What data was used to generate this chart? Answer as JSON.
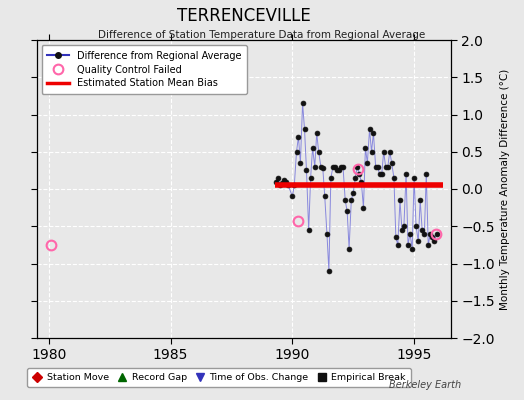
{
  "title": "TERRENCEVILLE",
  "subtitle": "Difference of Station Temperature Data from Regional Average",
  "ylabel": "Monthly Temperature Anomaly Difference (°C)",
  "xlim": [
    1979.5,
    1996.5
  ],
  "ylim": [
    -2,
    2
  ],
  "yticks": [
    -2,
    -1.5,
    -1,
    -0.5,
    0,
    0.5,
    1,
    1.5,
    2
  ],
  "xticks": [
    1980,
    1985,
    1990,
    1995
  ],
  "bias_level": 0.05,
  "bias_start": 1989.3,
  "bias_end": 1996.2,
  "qc_failed": [
    [
      1980.1,
      -0.75
    ],
    [
      1990.25,
      -0.43
    ],
    [
      1992.7,
      0.27
    ],
    [
      1995.9,
      -0.6
    ]
  ],
  "data_x": [
    1989.33,
    1989.42,
    1989.5,
    1989.58,
    1989.67,
    1989.75,
    1989.83,
    1990.0,
    1990.08,
    1990.17,
    1990.25,
    1990.33,
    1990.42,
    1990.5,
    1990.58,
    1990.67,
    1990.75,
    1990.83,
    1990.92,
    1991.0,
    1991.08,
    1991.17,
    1991.25,
    1991.33,
    1991.42,
    1991.5,
    1991.58,
    1991.67,
    1991.75,
    1991.83,
    1991.92,
    1992.0,
    1992.08,
    1992.17,
    1992.25,
    1992.33,
    1992.42,
    1992.5,
    1992.58,
    1992.67,
    1992.75,
    1992.83,
    1992.92,
    1993.0,
    1993.08,
    1993.17,
    1993.25,
    1993.33,
    1993.42,
    1993.5,
    1993.58,
    1993.67,
    1993.75,
    1993.83,
    1993.92,
    1994.0,
    1994.08,
    1994.17,
    1994.25,
    1994.33,
    1994.42,
    1994.5,
    1994.58,
    1994.67,
    1994.75,
    1994.83,
    1994.92,
    1995.0,
    1995.08,
    1995.17,
    1995.25,
    1995.33,
    1995.42,
    1995.5,
    1995.58,
    1995.67,
    1995.75,
    1995.83,
    1995.92
  ],
  "data_y": [
    0.1,
    0.15,
    0.05,
    0.08,
    0.12,
    0.1,
    0.05,
    -0.1,
    0.05,
    0.5,
    0.7,
    0.35,
    1.15,
    0.8,
    0.25,
    -0.55,
    0.15,
    0.55,
    0.3,
    0.75,
    0.5,
    0.3,
    0.28,
    -0.1,
    -0.6,
    -1.1,
    0.15,
    0.3,
    0.3,
    0.25,
    0.25,
    0.3,
    0.3,
    -0.15,
    -0.3,
    -0.8,
    -0.15,
    -0.05,
    0.15,
    0.3,
    0.2,
    0.1,
    -0.25,
    0.55,
    0.35,
    0.8,
    0.5,
    0.75,
    0.3,
    0.3,
    0.2,
    0.2,
    0.5,
    0.3,
    0.3,
    0.5,
    0.35,
    0.15,
    -0.65,
    -0.75,
    -0.15,
    -0.55,
    -0.5,
    0.2,
    -0.75,
    -0.6,
    -0.8,
    0.15,
    -0.5,
    -0.7,
    -0.15,
    -0.55,
    -0.6,
    0.2,
    -0.75,
    -0.6,
    -0.65,
    -0.7,
    -0.6
  ],
  "line_color": "#3333bb",
  "line_color_light": "#8888dd",
  "marker_color": "#111111",
  "bias_color": "#ee0000",
  "qc_color": "#ff66aa",
  "background_color": "#e8e8e8",
  "grid_color": "#ffffff",
  "watermark": "Berkeley Earth",
  "legend_items": [
    {
      "label": "Difference from Regional Average",
      "color": "#3333bb",
      "type": "line"
    },
    {
      "label": "Quality Control Failed",
      "color": "#ff66aa",
      "type": "circle"
    },
    {
      "label": "Estimated Station Mean Bias",
      "color": "#ee0000",
      "type": "line"
    }
  ],
  "bottom_legend": [
    {
      "label": "Station Move",
      "color": "#cc0000",
      "marker": "D"
    },
    {
      "label": "Record Gap",
      "color": "#006600",
      "marker": "^"
    },
    {
      "label": "Time of Obs. Change",
      "color": "#3333bb",
      "marker": "v"
    },
    {
      "label": "Empirical Break",
      "color": "#111111",
      "marker": "s"
    }
  ]
}
